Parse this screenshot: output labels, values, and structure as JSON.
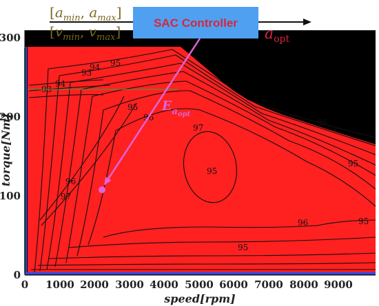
{
  "inputs": {
    "accel_range": "[a_min, a_max]",
    "speed_range": "[v_min, v_max]"
  },
  "controller": {
    "label": "SAC Controller"
  },
  "output": {
    "symbol": "a",
    "subscript": "opt"
  },
  "marker": {
    "symbol": "E",
    "subscript": "a_opt",
    "speed": 2200,
    "torque": 108
  },
  "chart_data": {
    "type": "contour",
    "xlabel": "speed[rpm]",
    "ylabel": "torque[Nm]",
    "xlim": [
      0,
      10000
    ],
    "ylim": [
      0,
      310
    ],
    "xticks": [
      "0",
      "1000",
      "2000",
      "3000",
      "4000",
      "5000",
      "6000",
      "7000",
      "8000",
      "9000"
    ],
    "yticks": [
      "0",
      "100",
      "200",
      "300"
    ],
    "contour_labels": [
      "93",
      "94",
      "95",
      "96",
      "97",
      "95",
      "96",
      "97",
      "96",
      "95",
      "95",
      "96",
      "95",
      "93",
      "94",
      "95"
    ],
    "colors": {
      "fill": "#ff2020",
      "arrow": "#e063d8",
      "controller_box": "#4fa0f0",
      "controller_text": "#d7263d",
      "bracket_text": "#7a6a1f",
      "output_text": "#d7263d"
    }
  }
}
